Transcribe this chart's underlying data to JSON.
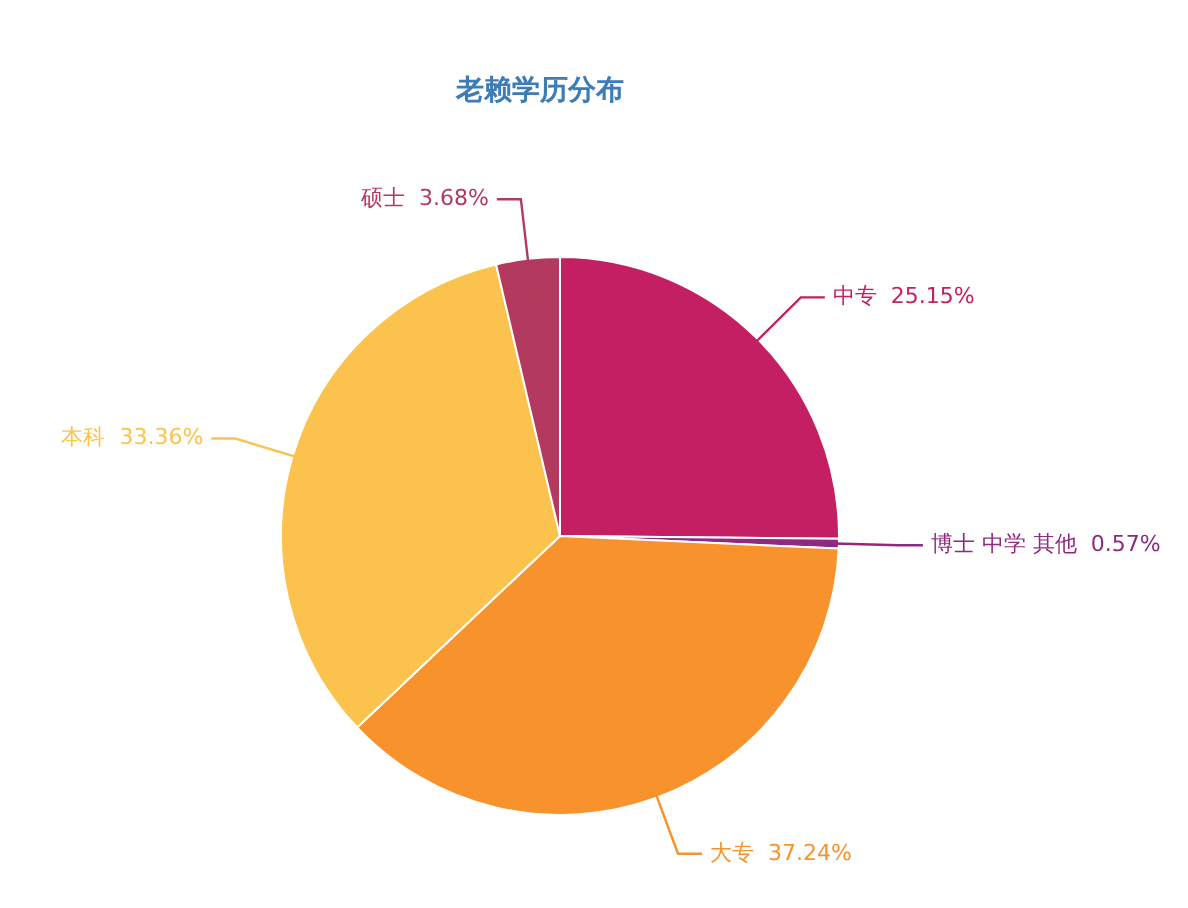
{
  "chart_data": {
    "type": "pie",
    "title": "老赖学历分布",
    "categories": [
      "中专",
      "博士 中学 其他",
      "大专",
      "本科",
      "硕士"
    ],
    "values": [
      25.15,
      0.57,
      37.24,
      33.36,
      3.68
    ],
    "value_labels": [
      "25.15%",
      "0.57%",
      "37.24%",
      "33.36%",
      "3.68%"
    ],
    "colors": [
      "#c41f62",
      "#8e2a80",
      "#f8922c",
      "#fbc24e",
      "#b33a5e"
    ],
    "legend": false
  }
}
